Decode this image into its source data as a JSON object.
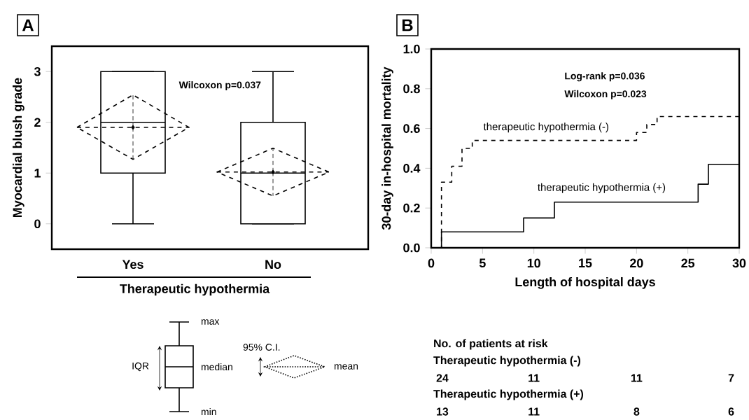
{
  "chart_data": [
    {
      "type": "box",
      "title": "A",
      "xlabel": "Therapeutic hypothermia",
      "ylabel": "Myocardial blush grade",
      "categories": [
        "Yes",
        "No"
      ],
      "ylim": [
        -0.5,
        3.5
      ],
      "yticks": [
        0,
        1,
        2,
        3
      ],
      "boxes": [
        {
          "low": 0,
          "q1": 1,
          "median": 2,
          "q3": 3,
          "high": 3
        },
        {
          "low": 0,
          "q1": 0,
          "median": 1,
          "q3": 2,
          "high": 3
        }
      ],
      "series": [
        {
          "type": "scatter",
          "x": [
            "Yes",
            "No"
          ],
          "values": [
            1.9,
            1.02
          ],
          "errors": [
            [
              1.27,
              2.54
            ],
            [
              0.55,
              1.49
            ]
          ],
          "marker": "diamond",
          "line_style": "dashed"
        }
      ],
      "annotations": [
        "Wilcoxon p=0.037",
        "max",
        "IQR",
        "median",
        "min",
        "95% C.I.",
        "mean"
      ]
    },
    {
      "type": "step",
      "title": "B",
      "xlabel": "Length of hospital days",
      "ylabel": "30-day in-hospital mortality",
      "xlim": [
        0,
        30
      ],
      "xticks": [
        0,
        5,
        10,
        15,
        20,
        25,
        30
      ],
      "ylim": [
        0,
        1
      ],
      "yticks": [
        {
          "value": 0,
          "label": "0.0"
        },
        {
          "value": 0.2,
          "label": "0.2"
        },
        {
          "value": 0.4,
          "label": "0.4"
        },
        {
          "value": 0.6,
          "label": "0.6"
        },
        {
          "value": 0.8,
          "label": "0.8"
        },
        {
          "value": 1,
          "label": "1.0"
        }
      ],
      "legend": false,
      "marker": "none",
      "series": [
        {
          "name": "therapeutic hypothermia (-)",
          "color": "#000000",
          "line_style": "dashed",
          "x": [
            0,
            1,
            2,
            3,
            4,
            20,
            21,
            22,
            30
          ],
          "values": [
            0,
            0.33,
            0.41,
            0.5,
            0.54,
            0.58,
            0.62,
            0.66,
            0.66
          ]
        },
        {
          "name": "therapeutic hypothermia (+)",
          "color": "#000000",
          "line_style": "solid",
          "x": [
            0,
            1,
            9,
            12,
            26,
            27,
            30
          ],
          "values": [
            0,
            0.08,
            0.15,
            0.23,
            0.32,
            0.42,
            0.42
          ]
        }
      ],
      "annotations": [
        "Log-rank p=0.036",
        "Wilcoxon p=0.023",
        "No. of patients at risk",
        "Therapeutic hypothermia (-)",
        "24",
        "11",
        "11",
        "7",
        "Therapeutic hypothermia (+)",
        "13",
        "11",
        "8",
        "6"
      ]
    }
  ]
}
